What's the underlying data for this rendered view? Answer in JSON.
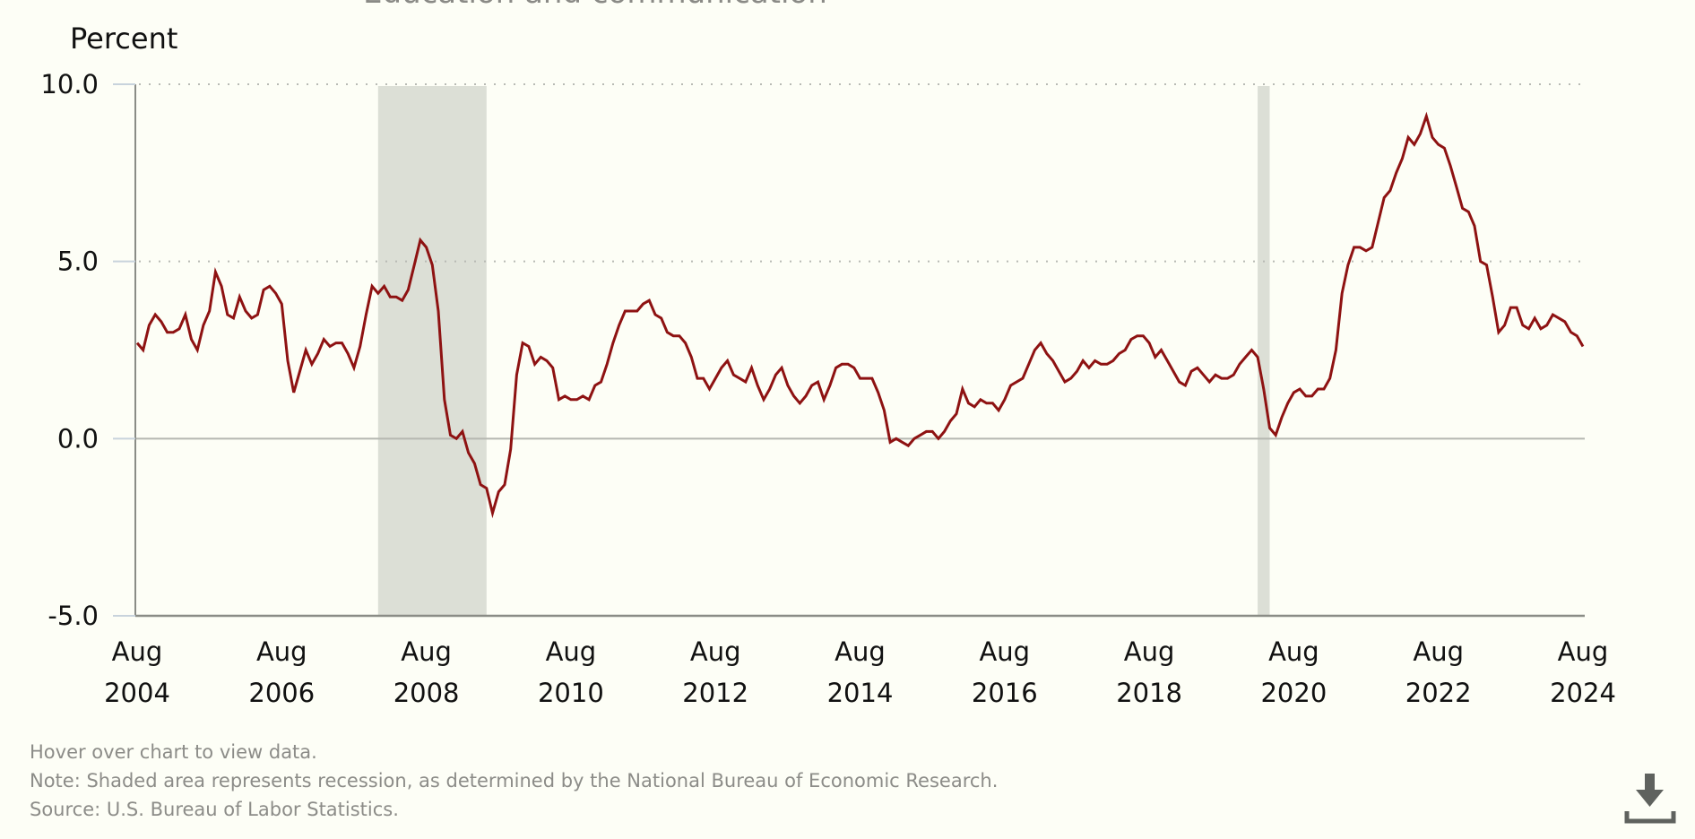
{
  "chart_data": {
    "type": "line",
    "title": "Education and communication",
    "ylabel": "Percent",
    "xlabel": "",
    "ylim": [
      -5.0,
      10.0
    ],
    "yticks": [
      "10.0",
      "5.0",
      "0.0",
      "-5.0"
    ],
    "ytick_values": [
      10.0,
      5.0,
      0.0,
      -5.0
    ],
    "x_start": "2004-08",
    "x_end": "2024-08",
    "xticks": [
      {
        "month": "Aug",
        "year": "2004",
        "index": 0
      },
      {
        "month": "Aug",
        "year": "2006",
        "index": 24
      },
      {
        "month": "Aug",
        "year": "2008",
        "index": 48
      },
      {
        "month": "Aug",
        "year": "2010",
        "index": 72
      },
      {
        "month": "Aug",
        "year": "2012",
        "index": 96
      },
      {
        "month": "Aug",
        "year": "2014",
        "index": 120
      },
      {
        "month": "Aug",
        "year": "2016",
        "index": 144
      },
      {
        "month": "Aug",
        "year": "2018",
        "index": 168
      },
      {
        "month": "Aug",
        "year": "2020",
        "index": 192
      },
      {
        "month": "Aug",
        "year": "2022",
        "index": 216
      },
      {
        "month": "Aug",
        "year": "2024",
        "index": 240
      }
    ],
    "gridlines": "dotted-horizontal",
    "recessions": [
      {
        "start": "2007-12",
        "end": "2009-06",
        "start_index": 40,
        "end_index": 58
      },
      {
        "start": "2020-02",
        "end": "2020-04",
        "start_index": 186,
        "end_index": 188
      }
    ],
    "series": [
      {
        "name": "Education and communication",
        "frequency": "monthly",
        "values": [
          2.7,
          2.5,
          3.2,
          3.5,
          3.3,
          3.0,
          3.0,
          3.1,
          3.5,
          2.8,
          2.5,
          3.2,
          3.6,
          4.7,
          4.3,
          3.5,
          3.4,
          4.0,
          3.6,
          3.4,
          3.5,
          4.2,
          4.3,
          4.1,
          3.8,
          2.2,
          1.3,
          1.9,
          2.5,
          2.1,
          2.4,
          2.8,
          2.6,
          2.7,
          2.7,
          2.4,
          2.0,
          2.6,
          3.5,
          4.3,
          4.1,
          4.3,
          4.0,
          4.0,
          3.9,
          4.2,
          4.9,
          5.6,
          5.4,
          4.9,
          3.6,
          1.1,
          0.1,
          0.0,
          0.2,
          -0.4,
          -0.7,
          -1.3,
          -1.4,
          -2.1,
          -1.5,
          -1.3,
          -0.3,
          1.8,
          2.7,
          2.6,
          2.1,
          2.3,
          2.2,
          2.0,
          1.1,
          1.2,
          1.1,
          1.1,
          1.2,
          1.1,
          1.5,
          1.6,
          2.1,
          2.7,
          3.2,
          3.6,
          3.6,
          3.6,
          3.8,
          3.9,
          3.5,
          3.4,
          3.0,
          2.9,
          2.9,
          2.7,
          2.3,
          1.7,
          1.7,
          1.4,
          1.7,
          2.0,
          2.2,
          1.8,
          1.7,
          1.6,
          2.0,
          1.5,
          1.1,
          1.4,
          1.8,
          2.0,
          1.5,
          1.2,
          1.0,
          1.2,
          1.5,
          1.6,
          1.1,
          1.5,
          2.0,
          2.1,
          2.1,
          2.0,
          1.7,
          1.7,
          1.7,
          1.3,
          0.8,
          -0.1,
          0.0,
          -0.1,
          -0.2,
          0.0,
          0.1,
          0.2,
          0.2,
          0.0,
          0.2,
          0.5,
          0.7,
          1.4,
          1.0,
          0.9,
          1.1,
          1.0,
          1.0,
          0.8,
          1.1,
          1.5,
          1.6,
          1.7,
          2.1,
          2.5,
          2.7,
          2.4,
          2.2,
          1.9,
          1.6,
          1.7,
          1.9,
          2.2,
          2.0,
          2.2,
          2.1,
          2.1,
          2.2,
          2.4,
          2.5,
          2.8,
          2.9,
          2.9,
          2.7,
          2.3,
          2.5,
          2.2,
          1.9,
          1.6,
          1.5,
          1.9,
          2.0,
          1.8,
          1.6,
          1.8,
          1.7,
          1.7,
          1.8,
          2.1,
          2.3,
          2.5,
          2.3,
          1.4,
          0.3,
          0.1,
          0.6,
          1.0,
          1.3,
          1.4,
          1.2,
          1.2,
          1.4,
          1.4,
          1.7,
          2.5,
          4.1,
          4.9,
          5.4,
          5.4,
          5.3,
          5.4,
          6.1,
          6.8,
          7.0,
          7.5,
          7.9,
          8.5,
          8.3,
          8.6,
          9.1,
          8.5,
          8.3,
          8.2,
          7.7,
          7.1,
          6.5,
          6.4,
          6.0,
          5.0,
          4.9,
          4.0,
          3.0,
          3.2,
          3.7,
          3.7,
          3.2,
          3.1,
          3.4,
          3.1,
          3.2,
          3.5,
          3.4,
          3.3,
          3.0,
          2.9,
          2.6
        ]
      }
    ]
  },
  "colors": {
    "line": "#8e1212",
    "recession": "#dcdfd6",
    "background": "#fdfef6",
    "axis": "#8a8c86",
    "grid": "#b8bab4",
    "tick": "#c8d3dc"
  },
  "footnotes": {
    "hover": "Hover over chart to view data.",
    "note": "Note: Shaded area represents recession, as determined by the National Bureau of Economic Research.",
    "source": "Source: U.S. Bureau of Labor Statistics."
  },
  "download": {
    "icon": "download-icon"
  }
}
